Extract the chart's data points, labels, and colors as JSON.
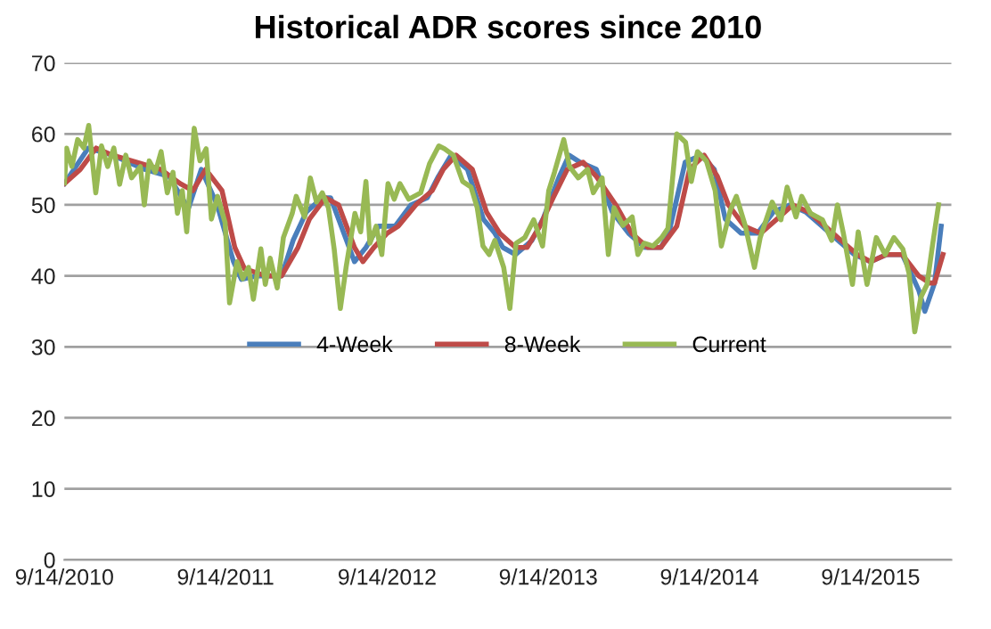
{
  "chart_data": {
    "type": "line",
    "title": "Historical ADR scores since 2010",
    "xlim": [
      "2010-09-14",
      "2016-03-15"
    ],
    "ylim": [
      0,
      70
    ],
    "yticks": [
      0,
      10,
      20,
      30,
      40,
      50,
      60,
      70
    ],
    "xticks": [
      {
        "value": "2010-09-14",
        "label": "9/14/2010"
      },
      {
        "value": "2011-09-14",
        "label": "9/14/2011"
      },
      {
        "value": "2012-09-14",
        "label": "9/14/2012"
      },
      {
        "value": "2013-09-14",
        "label": "9/14/2013"
      },
      {
        "value": "2014-09-14",
        "label": "9/14/2014"
      },
      {
        "value": "2015-09-14",
        "label": "9/14/2015"
      }
    ],
    "grid": "y",
    "legend": "center",
    "series": [
      {
        "name": "4-Week",
        "color": "#4a7ebb",
        "x": [
          "2010-09-14",
          "2010-11-07",
          "2011-01-01",
          "2011-03-15",
          "2011-05-09",
          "2011-06-22",
          "2011-07-21",
          "2011-08-26",
          "2011-10-02",
          "2011-10-20",
          "2011-11-25",
          "2012-01-19",
          "2012-02-14",
          "2012-03-15",
          "2012-04-20",
          "2012-05-09",
          "2012-06-14",
          "2012-07-02",
          "2012-07-28",
          "2012-08-26",
          "2012-10-02",
          "2012-11-07",
          "2012-12-14",
          "2013-01-08",
          "2013-02-06",
          "2013-03-15",
          "2013-04-20",
          "2013-05-16",
          "2013-06-03",
          "2013-07-02",
          "2013-08-08",
          "2013-09-02",
          "2013-10-09",
          "2013-10-31",
          "2013-11-25",
          "2014-01-01",
          "2014-02-06",
          "2014-03-15",
          "2014-04-20",
          "2014-05-27",
          "2014-06-14",
          "2014-07-21",
          "2014-08-26",
          "2014-09-25",
          "2014-10-20",
          "2014-11-25",
          "2015-01-01",
          "2015-02-06",
          "2015-03-15",
          "2015-04-20",
          "2015-05-27",
          "2015-07-02",
          "2015-08-08",
          "2015-09-14",
          "2015-10-20",
          "2015-11-25",
          "2016-01-01",
          "2016-01-15",
          "2016-02-06",
          "2016-02-21"
        ],
        "values": [
          53,
          58,
          57,
          55,
          54,
          49.5,
          55,
          50,
          42,
          39.5,
          40,
          40,
          45,
          49,
          51,
          51,
          45,
          42,
          44,
          47,
          47,
          50,
          51,
          54,
          57,
          55,
          48,
          46,
          44,
          43,
          45,
          48,
          54,
          57,
          56,
          55,
          49,
          46,
          44,
          44,
          46,
          56,
          57,
          55,
          48,
          46,
          46,
          49,
          50,
          49,
          47,
          45,
          43,
          42,
          43,
          43,
          38,
          35,
          39,
          47
        ]
      },
      {
        "name": "8-Week",
        "color": "#be4b48",
        "x": [
          "2010-09-14",
          "2010-10-20",
          "2010-11-25",
          "2011-01-01",
          "2011-02-25",
          "2011-04-20",
          "2011-06-03",
          "2011-07-02",
          "2011-07-31",
          "2011-09-06",
          "2011-10-05",
          "2011-10-27",
          "2011-12-14",
          "2012-01-19",
          "2012-02-25",
          "2012-03-22",
          "2012-04-27",
          "2012-05-27",
          "2012-07-02",
          "2012-07-21",
          "2012-08-15",
          "2012-09-14",
          "2012-10-09",
          "2012-11-18",
          "2012-12-25",
          "2013-01-19",
          "2013-02-17",
          "2013-03-26",
          "2013-04-27",
          "2013-05-27",
          "2013-07-02",
          "2013-07-28",
          "2013-08-26",
          "2013-09-25",
          "2013-10-27",
          "2013-12-02",
          "2014-01-01",
          "2014-02-14",
          "2014-03-22",
          "2014-04-27",
          "2014-05-27",
          "2014-07-02",
          "2014-07-31",
          "2014-09-02",
          "2014-10-02",
          "2014-10-27",
          "2014-12-02",
          "2015-01-08",
          "2015-02-14",
          "2015-03-22",
          "2015-04-27",
          "2015-06-03",
          "2015-07-09",
          "2015-08-15",
          "2015-09-14",
          "2015-10-20",
          "2015-11-25",
          "2016-01-01",
          "2016-01-26",
          "2016-02-06",
          "2016-02-25"
        ],
        "values": [
          53,
          55,
          58,
          57,
          56,
          55,
          53,
          52,
          55,
          52,
          44,
          41,
          40,
          40,
          44,
          48,
          51,
          50,
          44,
          42,
          44,
          46,
          47,
          50,
          52,
          55,
          57,
          55,
          49,
          46,
          44,
          44,
          47,
          51,
          55,
          56,
          54,
          50,
          46,
          44,
          44,
          47,
          55,
          57,
          54,
          50,
          47,
          46,
          48,
          50,
          49,
          47,
          45,
          43,
          42,
          43,
          43,
          40,
          39,
          39,
          43
        ]
      },
      {
        "name": "Current",
        "color": "#98b954",
        "x": [
          "2010-09-14",
          "2010-09-19",
          "2010-10-01",
          "2010-10-14",
          "2010-10-28",
          "2010-11-08",
          "2010-11-24",
          "2010-12-07",
          "2010-12-21",
          "2011-01-04",
          "2011-01-17",
          "2011-01-31",
          "2011-02-13",
          "2011-03-05",
          "2011-03-14",
          "2011-03-25",
          "2011-04-08",
          "2011-04-21",
          "2011-05-05",
          "2011-05-18",
          "2011-05-28",
          "2011-06-08",
          "2011-06-18",
          "2011-07-05",
          "2011-07-18",
          "2011-08-01",
          "2011-08-13",
          "2011-08-27",
          "2011-09-13",
          "2011-09-23",
          "2011-10-10",
          "2011-10-23",
          "2011-11-05",
          "2011-11-16",
          "2011-12-03",
          "2011-12-13",
          "2011-12-24",
          "2012-01-09",
          "2012-01-23",
          "2012-02-12",
          "2012-02-21",
          "2012-03-11",
          "2012-03-24",
          "2012-04-07",
          "2012-04-20",
          "2012-05-04",
          "2012-05-17",
          "2012-05-31",
          "2012-06-13",
          "2012-07-03",
          "2012-07-16",
          "2012-07-28",
          "2012-08-06",
          "2012-08-20",
          "2012-09-02",
          "2012-09-16",
          "2012-09-30",
          "2012-10-13",
          "2012-11-02",
          "2012-11-29",
          "2012-12-19",
          "2013-01-09",
          "2013-01-22",
          "2013-02-11",
          "2013-03-04",
          "2013-03-23",
          "2013-04-06",
          "2013-04-19",
          "2013-05-03",
          "2013-05-16",
          "2013-06-05",
          "2013-06-19",
          "2013-07-03",
          "2013-07-23",
          "2013-08-12",
          "2013-09-01",
          "2013-09-15",
          "2013-09-28",
          "2013-10-19",
          "2013-11-01",
          "2013-11-21",
          "2013-12-12",
          "2013-12-25",
          "2014-01-14",
          "2014-01-28",
          "2014-02-10",
          "2014-03-02",
          "2014-03-23",
          "2014-04-05",
          "2014-04-19",
          "2014-05-09",
          "2014-05-29",
          "2014-06-12",
          "2014-07-02",
          "2014-07-22",
          "2014-08-04",
          "2014-08-18",
          "2014-09-07",
          "2014-09-27",
          "2014-10-11",
          "2014-10-31",
          "2014-11-14",
          "2014-12-04",
          "2014-12-25",
          "2015-01-07",
          "2015-02-03",
          "2015-02-23",
          "2015-03-09",
          "2015-03-29",
          "2015-04-11",
          "2015-05-01",
          "2015-05-28",
          "2015-06-18",
          "2015-07-01",
          "2015-07-15",
          "2015-08-04",
          "2015-08-17",
          "2015-09-06",
          "2015-09-27",
          "2015-10-17",
          "2015-11-06",
          "2015-11-26",
          "2015-12-10",
          "2015-12-23",
          "2016-01-06",
          "2016-01-20",
          "2016-02-02",
          "2016-02-15"
        ],
        "values": [
          53.1,
          58,
          55.4,
          59.2,
          58,
          61.2,
          51.7,
          58.3,
          55.4,
          58,
          52.9,
          57,
          53.8,
          55.4,
          50,
          56.2,
          54.6,
          57.5,
          51.7,
          54.6,
          48.8,
          52,
          46.2,
          60.8,
          56.2,
          57.9,
          48,
          51.2,
          47.5,
          36.2,
          42,
          39.6,
          41.2,
          36.7,
          43.8,
          38.8,
          42.5,
          38.3,
          45.4,
          48.8,
          51.2,
          48.3,
          53.8,
          50.4,
          51.7,
          49.6,
          43.8,
          35.4,
          41.2,
          48.8,
          46.2,
          53.3,
          44.6,
          47,
          43,
          53,
          50.8,
          53,
          50.8,
          51.7,
          55.8,
          58.3,
          57.9,
          57,
          53.3,
          52.5,
          49.6,
          44.2,
          43,
          45,
          41.2,
          35.4,
          44.6,
          45.4,
          47.9,
          44.2,
          52,
          54.6,
          59.2,
          55.4,
          53.8,
          55,
          51.7,
          53.8,
          43,
          49.6,
          47.1,
          48.3,
          43,
          44.6,
          44.2,
          45.4,
          46.7,
          60,
          58.8,
          53.3,
          57.5,
          56.2,
          52,
          44.2,
          49.2,
          51.2,
          47.1,
          41.2,
          45.4,
          50.4,
          47.9,
          52.5,
          48.3,
          51.2,
          48.8,
          47.9,
          45,
          50,
          45.8,
          38.8,
          46.2,
          38.8,
          45.4,
          43,
          45.4,
          43.8,
          40.4,
          32.1,
          37,
          38.8,
          44.6,
          50
        ]
      }
    ]
  }
}
